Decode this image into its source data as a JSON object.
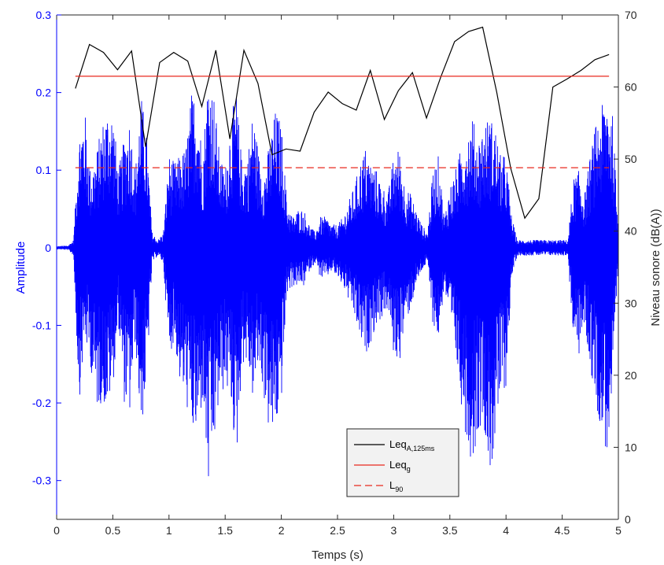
{
  "chart_data": {
    "type": "line",
    "x_axis": {
      "label": "Temps (s)",
      "range": [
        0,
        5
      ],
      "ticks": [
        0,
        0.5,
        1,
        1.5,
        2,
        2.5,
        3,
        3.5,
        4,
        4.5,
        5
      ],
      "tick_labels": [
        "0",
        "0.5",
        "1",
        "1.5",
        "2",
        "2.5",
        "3",
        "3.5",
        "4",
        "4.5",
        "5"
      ]
    },
    "y_left": {
      "label": "Amplitude",
      "range": [
        -0.35,
        0.3
      ],
      "ticks": [
        -0.3,
        -0.2,
        -0.1,
        0,
        0.1,
        0.2,
        0.3
      ],
      "tick_labels": [
        "-0.3",
        "-0.2",
        "-0.1",
        "0",
        "0.1",
        "0.2",
        "0.3"
      ],
      "color": "#0000ff"
    },
    "y_right": {
      "label": "Niveau sonore (dB(A))",
      "range": [
        0,
        70
      ],
      "ticks": [
        0,
        10,
        20,
        30,
        40,
        50,
        60,
        70
      ],
      "tick_labels": [
        "0",
        "10",
        "20",
        "30",
        "40",
        "50",
        "60",
        "70"
      ],
      "color": "#262626"
    },
    "waveform": {
      "axis": "left",
      "color": "#0000ff",
      "envelope_times": [
        0.0,
        0.1,
        0.15,
        0.2,
        0.25,
        0.3,
        0.35,
        0.4,
        0.45,
        0.5,
        0.55,
        0.6,
        0.65,
        0.7,
        0.75,
        0.8,
        0.85,
        0.9,
        0.95,
        1.0,
        1.05,
        1.1,
        1.15,
        1.2,
        1.25,
        1.3,
        1.35,
        1.4,
        1.45,
        1.5,
        1.55,
        1.6,
        1.65,
        1.7,
        1.75,
        1.8,
        1.85,
        1.9,
        1.95,
        2.0,
        2.05,
        2.1,
        2.15,
        2.2,
        2.25,
        2.3,
        2.35,
        2.4,
        2.45,
        2.5,
        2.55,
        2.6,
        2.65,
        2.7,
        2.75,
        2.8,
        2.85,
        2.9,
        2.95,
        3.0,
        3.05,
        3.1,
        3.15,
        3.2,
        3.25,
        3.3,
        3.35,
        3.4,
        3.45,
        3.5,
        3.55,
        3.6,
        3.65,
        3.7,
        3.75,
        3.8,
        3.85,
        3.9,
        3.95,
        4.0,
        4.05,
        4.1,
        4.15,
        4.2,
        4.25,
        4.3,
        4.35,
        4.4,
        4.45,
        4.5,
        4.55,
        4.6,
        4.65,
        4.7,
        4.75,
        4.8,
        4.85,
        4.9,
        4.95,
        5.0
      ],
      "envelope_max": [
        0.002,
        0.003,
        0.01,
        0.15,
        0.18,
        0.1,
        0.12,
        0.16,
        0.18,
        0.18,
        0.1,
        0.14,
        0.17,
        0.1,
        0.2,
        0.15,
        0.02,
        0.01,
        0.02,
        0.12,
        0.11,
        0.12,
        0.13,
        0.2,
        0.2,
        0.12,
        0.23,
        0.2,
        0.12,
        0.1,
        0.17,
        0.2,
        0.11,
        0.12,
        0.18,
        0.12,
        0.1,
        0.14,
        0.18,
        0.16,
        0.06,
        0.04,
        0.05,
        0.05,
        0.03,
        0.02,
        0.04,
        0.04,
        0.03,
        0.03,
        0.04,
        0.06,
        0.08,
        0.11,
        0.13,
        0.11,
        0.1,
        0.08,
        0.07,
        0.12,
        0.13,
        0.08,
        0.07,
        0.05,
        0.03,
        0.02,
        0.1,
        0.12,
        0.04,
        0.08,
        0.1,
        0.13,
        0.15,
        0.17,
        0.14,
        0.16,
        0.17,
        0.16,
        0.12,
        0.12,
        0.04,
        0.01,
        0.01,
        0.01,
        0.01,
        0.01,
        0.01,
        0.01,
        0.01,
        0.01,
        0.01,
        0.09,
        0.1,
        0.07,
        0.12,
        0.16,
        0.18,
        0.21,
        0.17,
        0.02
      ],
      "envelope_min": [
        -0.002,
        -0.003,
        -0.01,
        -0.2,
        -0.12,
        -0.15,
        -0.21,
        -0.2,
        -0.21,
        -0.18,
        -0.1,
        -0.2,
        -0.22,
        -0.12,
        -0.24,
        -0.18,
        -0.02,
        -0.01,
        -0.02,
        -0.14,
        -0.12,
        -0.18,
        -0.2,
        -0.24,
        -0.25,
        -0.2,
        -0.32,
        -0.26,
        -0.2,
        -0.18,
        -0.2,
        -0.28,
        -0.15,
        -0.15,
        -0.2,
        -0.15,
        -0.2,
        -0.25,
        -0.24,
        -0.2,
        -0.06,
        -0.05,
        -0.05,
        -0.05,
        -0.03,
        -0.02,
        -0.04,
        -0.04,
        -0.03,
        -0.04,
        -0.05,
        -0.07,
        -0.09,
        -0.12,
        -0.14,
        -0.12,
        -0.1,
        -0.09,
        -0.08,
        -0.14,
        -0.15,
        -0.1,
        -0.08,
        -0.05,
        -0.03,
        -0.02,
        -0.1,
        -0.12,
        -0.05,
        -0.1,
        -0.14,
        -0.2,
        -0.25,
        -0.28,
        -0.24,
        -0.22,
        -0.3,
        -0.26,
        -0.2,
        -0.18,
        -0.04,
        -0.01,
        -0.01,
        -0.01,
        -0.01,
        -0.01,
        -0.01,
        -0.01,
        -0.01,
        -0.01,
        -0.01,
        -0.12,
        -0.14,
        -0.1,
        -0.16,
        -0.2,
        -0.24,
        -0.27,
        -0.2,
        -0.02
      ]
    },
    "series": [
      {
        "axis": "right",
        "name": "Leq",
        "name_sub": "A,125ms",
        "color": "#000000",
        "dash": "solid",
        "x": [
          0.167,
          0.292,
          0.417,
          0.542,
          0.667,
          0.792,
          0.917,
          1.042,
          1.167,
          1.292,
          1.417,
          1.542,
          1.667,
          1.792,
          1.917,
          2.042,
          2.167,
          2.292,
          2.417,
          2.542,
          2.667,
          2.792,
          2.917,
          3.042,
          3.167,
          3.292,
          3.417,
          3.542,
          3.667,
          3.792,
          3.917,
          4.042,
          4.167,
          4.292,
          4.417,
          4.542,
          4.667,
          4.792,
          4.917
        ],
        "y": [
          59.8,
          65.9,
          64.8,
          62.4,
          65.0,
          51.7,
          63.4,
          64.8,
          63.6,
          57.3,
          65.1,
          52.8,
          65.1,
          60.5,
          50.6,
          51.4,
          51.1,
          56.5,
          59.3,
          57.7,
          56.8,
          62.3,
          55.5,
          59.5,
          62.0,
          55.7,
          61.3,
          66.3,
          67.7,
          68.3,
          59.3,
          48.7,
          41.8,
          44.5,
          60.0,
          61.1,
          62.3,
          63.8,
          64.5
        ]
      },
      {
        "axis": "right",
        "name": "Leq",
        "name_sub": "g",
        "color": "#e8281e",
        "dash": "solid",
        "x": [
          0.167,
          4.917
        ],
        "y": [
          61.5,
          61.5
        ]
      },
      {
        "axis": "right",
        "name": "L",
        "name_sub": "90",
        "color": "#e8281e",
        "dash": "dashed",
        "x": [
          0.167,
          4.917
        ],
        "y": [
          48.8,
          48.8
        ]
      }
    ],
    "legend": {
      "placement": "bottom-center"
    },
    "grid": false
  }
}
